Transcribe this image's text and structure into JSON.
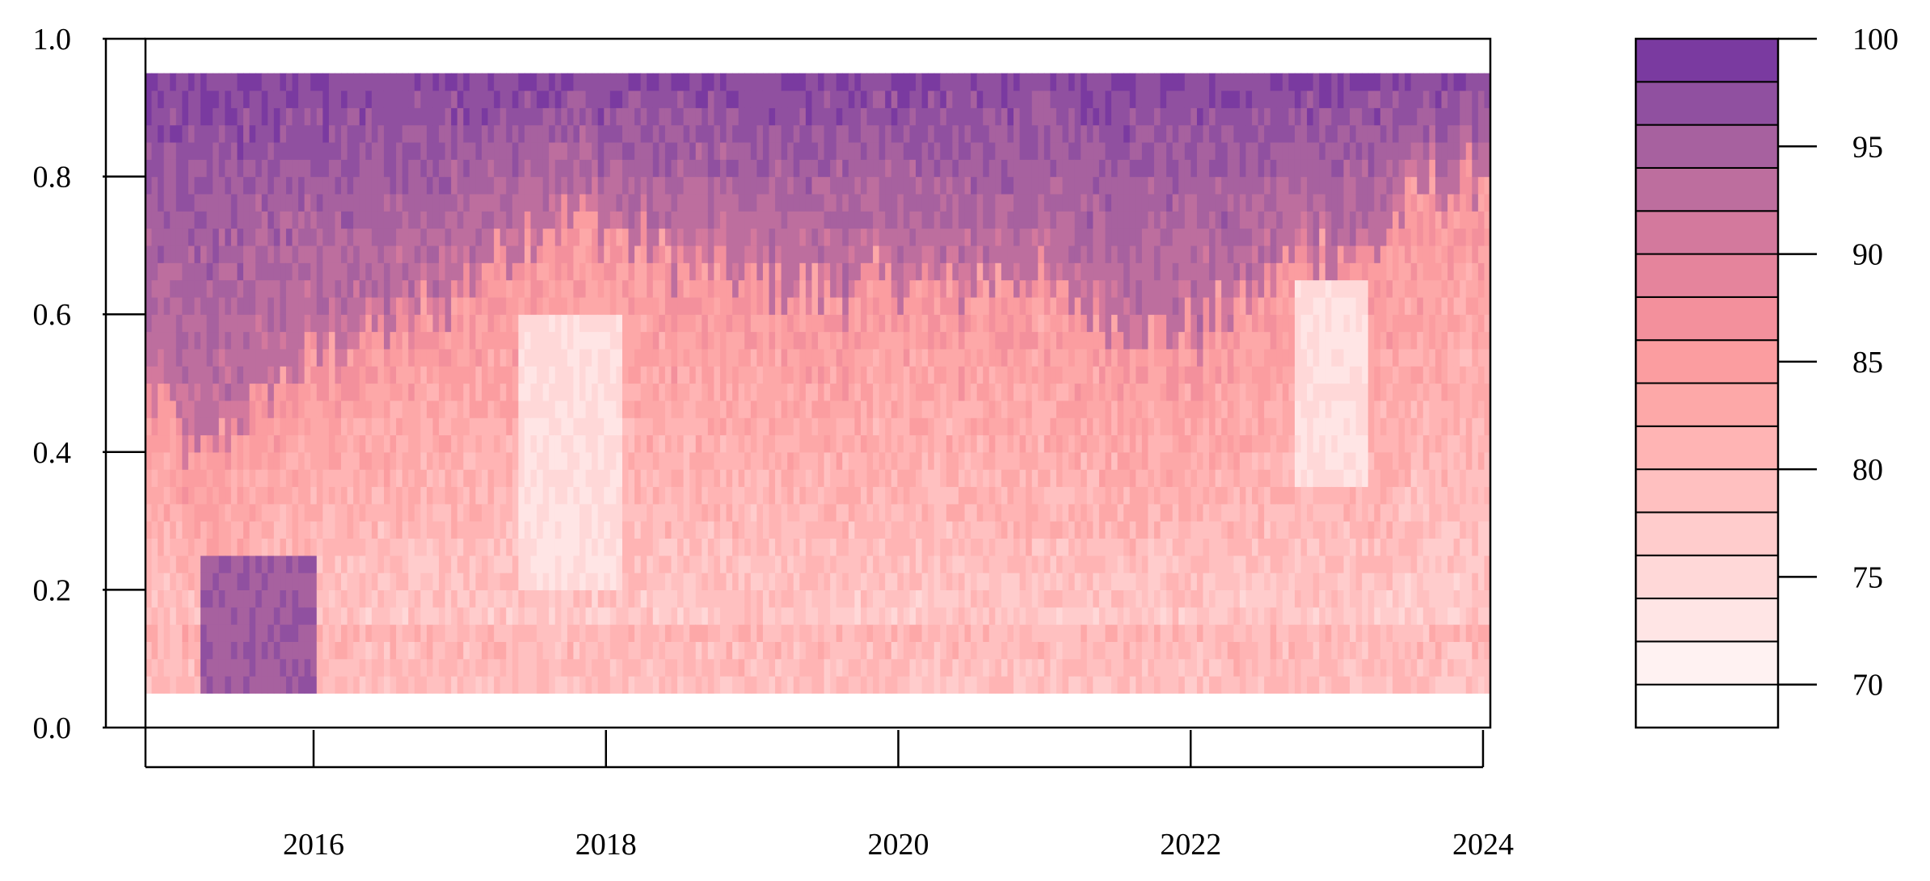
{
  "chart_data": {
    "type": "heatmap",
    "title": "",
    "xlabel": "",
    "ylabel": "",
    "x_range": [
      2014.85,
      2024.05
    ],
    "y_range": [
      0.0,
      1.0
    ],
    "x_ticks": [
      2016,
      2018,
      2020,
      2022,
      2024
    ],
    "x_tick_labels": [
      "2016",
      "2018",
      "2020",
      "2022",
      "2024"
    ],
    "y_ticks": [
      0.0,
      0.2,
      0.4,
      0.6,
      0.8,
      1.0
    ],
    "y_tick_labels": [
      "0.0",
      "0.2",
      "0.4",
      "0.6",
      "0.8",
      "1.0"
    ],
    "data_extent_y": [
      0.05,
      0.95
    ],
    "colorbar": {
      "range": [
        68,
        100
      ],
      "levels": [
        68,
        70,
        72,
        74,
        76,
        78,
        80,
        82,
        84,
        86,
        88,
        90,
        92,
        94,
        96,
        98,
        100
      ],
      "colors": [
        "#ffffff",
        "#fff2f2",
        "#ffe5e5",
        "#ffd8d8",
        "#ffcccc",
        "#ffc0c0",
        "#ffb4b4",
        "#fda8a8",
        "#fb9da0",
        "#f3909c",
        "#e5849c",
        "#d3799d",
        "#bd6e9e",
        "#a7619f",
        "#9050a0",
        "#7a3aa0"
      ],
      "tick_values": [
        70,
        75,
        80,
        85,
        90,
        95,
        100
      ],
      "tick_labels": [
        "70",
        "75",
        "80",
        "85",
        "90",
        "95",
        "100"
      ]
    },
    "x_profile": [
      {
        "x": 2014.95,
        "boundary": 0.48
      },
      {
        "x": 2015.2,
        "boundary": 0.38
      },
      {
        "x": 2015.5,
        "boundary": 0.45
      },
      {
        "x": 2015.8,
        "boundary": 0.5
      },
      {
        "x": 2016.1,
        "boundary": 0.55
      },
      {
        "x": 2016.5,
        "boundary": 0.58
      },
      {
        "x": 2016.9,
        "boundary": 0.62
      },
      {
        "x": 2017.3,
        "boundary": 0.7
      },
      {
        "x": 2017.6,
        "boundary": 0.74
      },
      {
        "x": 2018.0,
        "boundary": 0.73
      },
      {
        "x": 2018.4,
        "boundary": 0.68
      },
      {
        "x": 2018.8,
        "boundary": 0.66
      },
      {
        "x": 2019.2,
        "boundary": 0.64
      },
      {
        "x": 2019.6,
        "boundary": 0.63
      },
      {
        "x": 2020.0,
        "boundary": 0.65
      },
      {
        "x": 2020.4,
        "boundary": 0.64
      },
      {
        "x": 2020.8,
        "boundary": 0.66
      },
      {
        "x": 2021.2,
        "boundary": 0.62
      },
      {
        "x": 2021.6,
        "boundary": 0.58
      },
      {
        "x": 2022.0,
        "boundary": 0.57
      },
      {
        "x": 2022.4,
        "boundary": 0.62
      },
      {
        "x": 2022.8,
        "boundary": 0.7
      },
      {
        "x": 2023.2,
        "boundary": 0.68
      },
      {
        "x": 2023.6,
        "boundary": 0.78
      },
      {
        "x": 2024.0,
        "boundary": 0.8
      }
    ]
  }
}
